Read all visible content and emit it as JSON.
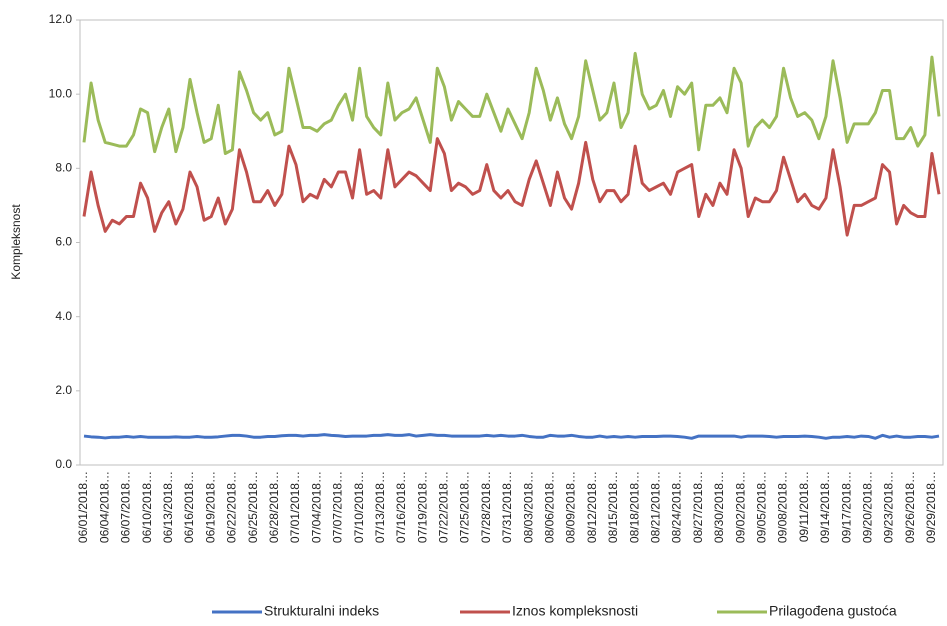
{
  "chart_data": {
    "type": "line",
    "y_label": "Kompleksnost",
    "categories": [
      "06/01/2018…",
      null,
      null,
      "06/04/2018…",
      null,
      null,
      "06/07/2018…",
      null,
      null,
      "06/10/2018…",
      null,
      null,
      "06/13/2018…",
      null,
      null,
      "06/16/2018…",
      null,
      null,
      "06/19/2018…",
      null,
      null,
      "06/22/2018…",
      null,
      null,
      "06/25/2018…",
      null,
      null,
      "06/28/2018…",
      null,
      null,
      "07/01/2018…",
      null,
      null,
      "07/04/2018…",
      null,
      null,
      "07/07/2018…",
      null,
      null,
      "07/10/2018…",
      null,
      null,
      "07/13/2018…",
      null,
      null,
      "07/16/2018…",
      null,
      null,
      "07/19/2018…",
      null,
      null,
      "07/22/2018…",
      null,
      null,
      "07/25/2018…",
      null,
      null,
      "07/28/2018…",
      null,
      null,
      "07/31/2018…",
      null,
      null,
      "08/03/2018…",
      null,
      null,
      "08/06/2018…",
      null,
      null,
      "08/09/2018…",
      null,
      null,
      "08/12/2018…",
      null,
      null,
      "08/15/2018…",
      null,
      null,
      "08/18/2018…",
      null,
      null,
      "08/21/2018…",
      null,
      null,
      "08/24/2018…",
      null,
      null,
      "08/27/2018…",
      null,
      null,
      "08/30/2018…",
      null,
      null,
      "09/02/2018…",
      null,
      null,
      "09/05/2018…",
      null,
      null,
      "09/08/2018…",
      null,
      null,
      "09/11/2018…",
      null,
      null,
      "09/14/2018…",
      null,
      null,
      "09/17/2018…",
      null,
      null,
      "09/20/2018…",
      null,
      null,
      "09/23/2018…",
      null,
      null,
      "09/26/2018…",
      null,
      null,
      "09/29/2018…",
      null
    ],
    "series": [
      {
        "name": "Strukturalni indeks",
        "color": "#4472c4",
        "values": [
          0.78,
          0.76,
          0.75,
          0.73,
          0.75,
          0.75,
          0.77,
          0.75,
          0.77,
          0.75,
          0.75,
          0.75,
          0.75,
          0.76,
          0.75,
          0.75,
          0.77,
          0.75,
          0.75,
          0.76,
          0.78,
          0.8,
          0.8,
          0.78,
          0.75,
          0.75,
          0.77,
          0.77,
          0.79,
          0.8,
          0.8,
          0.78,
          0.8,
          0.8,
          0.82,
          0.8,
          0.79,
          0.77,
          0.78,
          0.78,
          0.78,
          0.8,
          0.8,
          0.82,
          0.8,
          0.8,
          0.82,
          0.78,
          0.8,
          0.82,
          0.8,
          0.8,
          0.78,
          0.78,
          0.78,
          0.78,
          0.78,
          0.8,
          0.78,
          0.8,
          0.78,
          0.78,
          0.8,
          0.77,
          0.75,
          0.75,
          0.8,
          0.78,
          0.78,
          0.8,
          0.77,
          0.75,
          0.75,
          0.78,
          0.75,
          0.77,
          0.75,
          0.77,
          0.75,
          0.77,
          0.77,
          0.77,
          0.78,
          0.78,
          0.77,
          0.75,
          0.72,
          0.78,
          0.78,
          0.78,
          0.78,
          0.78,
          0.78,
          0.75,
          0.78,
          0.78,
          0.78,
          0.77,
          0.75,
          0.77,
          0.77,
          0.77,
          0.78,
          0.77,
          0.75,
          0.72,
          0.75,
          0.75,
          0.77,
          0.75,
          0.78,
          0.77,
          0.72,
          0.8,
          0.75,
          0.78,
          0.75,
          0.75,
          0.77,
          0.77,
          0.75,
          0.78
        ]
      },
      {
        "name": "Iznos kompleksnosti",
        "color": "#c0504d",
        "values": [
          6.7,
          7.9,
          7.0,
          6.3,
          6.6,
          6.5,
          6.7,
          6.7,
          7.6,
          7.2,
          6.3,
          6.8,
          7.1,
          6.5,
          6.9,
          7.9,
          7.5,
          6.6,
          6.7,
          7.2,
          6.5,
          6.9,
          8.5,
          7.9,
          7.1,
          7.1,
          7.4,
          7.0,
          7.3,
          8.6,
          8.1,
          7.1,
          7.3,
          7.2,
          7.7,
          7.5,
          7.9,
          7.9,
          7.2,
          8.5,
          7.3,
          7.4,
          7.2,
          8.5,
          7.5,
          7.7,
          7.9,
          7.8,
          7.6,
          7.4,
          8.8,
          8.4,
          7.4,
          7.6,
          7.5,
          7.3,
          7.4,
          8.1,
          7.4,
          7.2,
          7.4,
          7.1,
          7.0,
          7.7,
          8.2,
          7.6,
          7.0,
          7.9,
          7.2,
          6.9,
          7.6,
          8.7,
          7.7,
          7.1,
          7.4,
          7.4,
          7.1,
          7.3,
          8.6,
          7.6,
          7.4,
          7.5,
          7.6,
          7.3,
          7.9,
          8.0,
          8.1,
          6.7,
          7.3,
          7.0,
          7.6,
          7.3,
          8.5,
          8.0,
          6.7,
          7.2,
          7.1,
          7.1,
          7.4,
          8.3,
          7.7,
          7.1,
          7.3,
          7.0,
          6.9,
          7.2,
          8.5,
          7.5,
          6.2,
          7.0,
          7.0,
          7.1,
          7.2,
          8.1,
          7.9,
          6.5,
          7.0,
          6.8,
          6.7,
          6.7,
          8.4,
          7.3
        ]
      },
      {
        "name": "Prilagođena gustoća",
        "color": "#9bbb59",
        "values": [
          8.7,
          10.3,
          9.3,
          8.7,
          8.65,
          8.6,
          8.6,
          8.9,
          9.6,
          9.5,
          8.45,
          9.1,
          9.6,
          8.45,
          9.1,
          10.4,
          9.5,
          8.7,
          8.8,
          9.7,
          8.4,
          8.5,
          10.6,
          10.1,
          9.5,
          9.3,
          9.5,
          8.9,
          9.0,
          10.7,
          9.9,
          9.1,
          9.1,
          9.0,
          9.2,
          9.3,
          9.7,
          10.0,
          9.3,
          10.7,
          9.4,
          9.1,
          8.9,
          10.3,
          9.3,
          9.5,
          9.6,
          9.9,
          9.3,
          8.7,
          10.7,
          10.2,
          9.3,
          9.8,
          9.6,
          9.4,
          9.4,
          10.0,
          9.5,
          9.0,
          9.6,
          9.2,
          8.8,
          9.5,
          10.7,
          10.1,
          9.3,
          9.9,
          9.2,
          8.8,
          9.4,
          10.9,
          10.1,
          9.3,
          9.5,
          10.3,
          9.1,
          9.5,
          11.1,
          10.0,
          9.6,
          9.7,
          10.1,
          9.4,
          10.2,
          10.0,
          10.3,
          8.5,
          9.7,
          9.7,
          9.9,
          9.5,
          10.7,
          10.3,
          8.6,
          9.1,
          9.3,
          9.1,
          9.4,
          10.7,
          9.9,
          9.4,
          9.5,
          9.3,
          8.8,
          9.4,
          10.9,
          9.9,
          8.7,
          9.2,
          9.2,
          9.2,
          9.5,
          10.1,
          10.1,
          8.8,
          8.8,
          9.1,
          8.6,
          8.9,
          11.0,
          9.4
        ]
      }
    ],
    "ylim": [
      0,
      12
    ],
    "yticks": [
      {
        "value": 0,
        "label": "0.0"
      },
      {
        "value": 2,
        "label": "2.0"
      },
      {
        "value": 4,
        "label": "4.0"
      },
      {
        "value": 6,
        "label": "6.0"
      },
      {
        "value": 8,
        "label": "8.0"
      },
      {
        "value": 10,
        "label": "10.0"
      },
      {
        "value": 12,
        "label": "12.0"
      }
    ],
    "grid": false,
    "legend": "bottom"
  }
}
